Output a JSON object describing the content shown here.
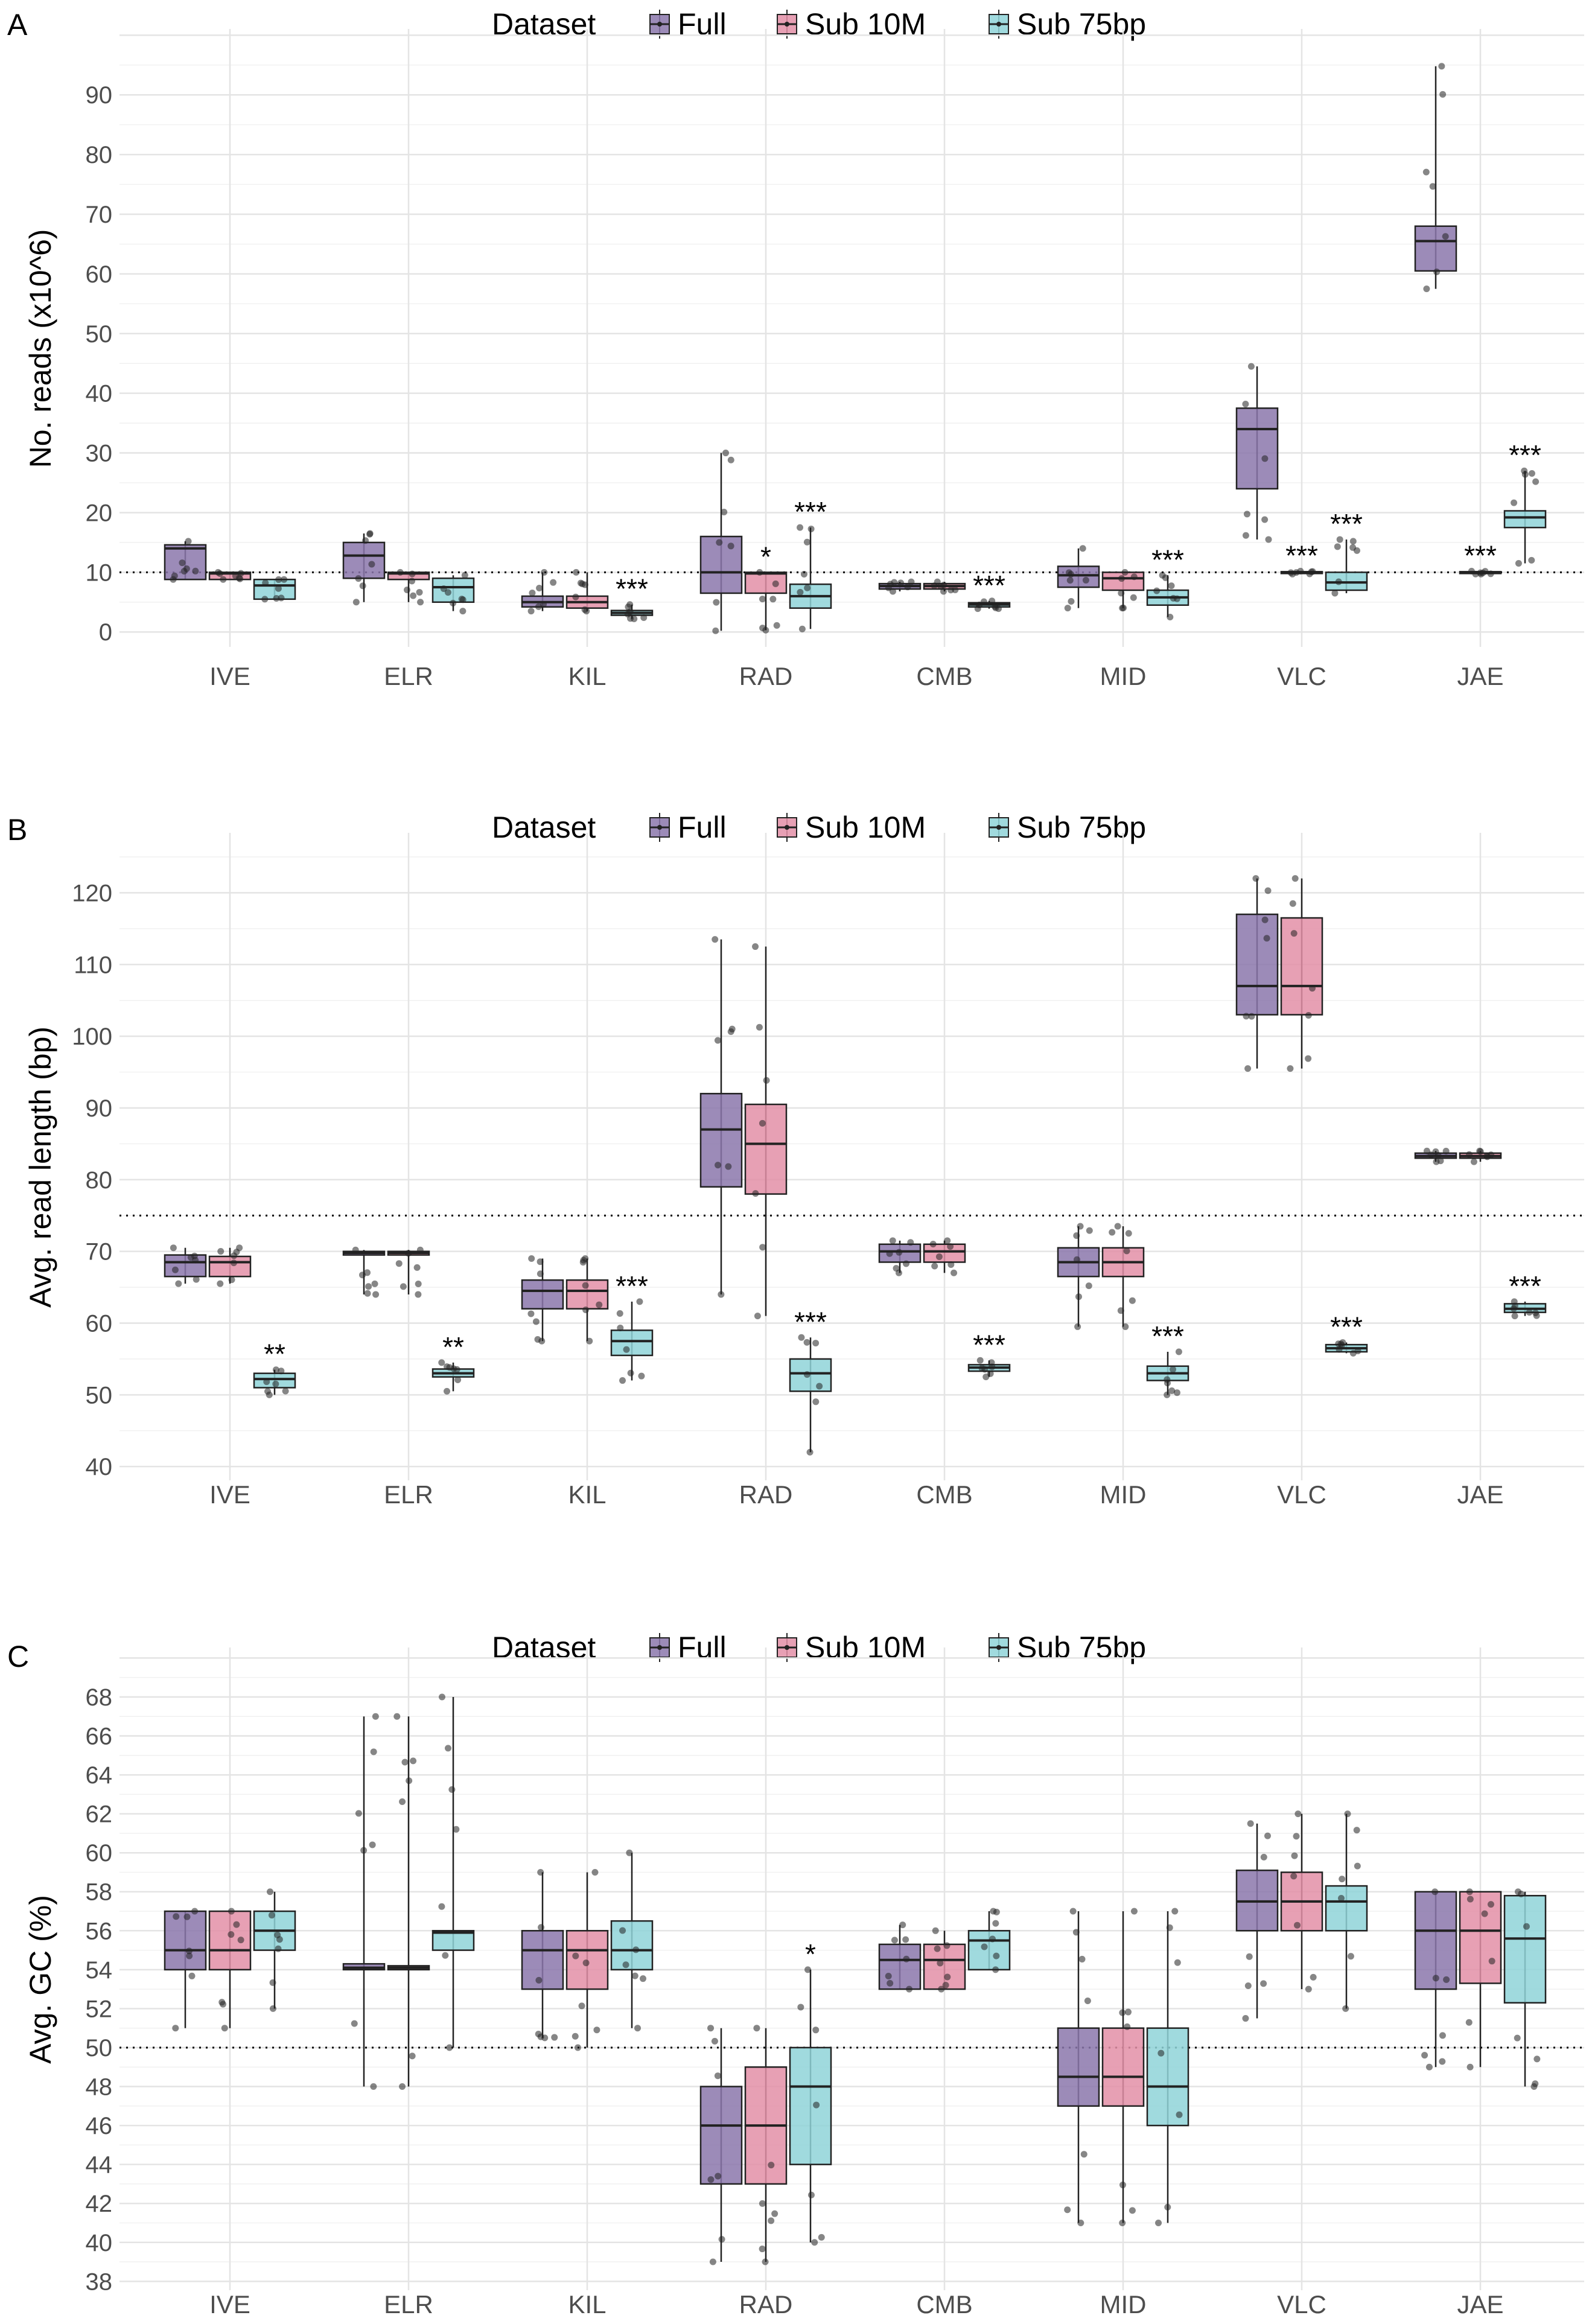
{
  "legend": {
    "title": "Dataset",
    "entries": [
      {
        "label": "Full",
        "color": "#8b77ac"
      },
      {
        "label": "Sub 10M",
        "color": "#e38fa7"
      },
      {
        "label": "Sub 75bp",
        "color": "#8fd3d8"
      }
    ]
  },
  "chart_data": [
    {
      "type": "box",
      "panel_label": "A",
      "ylabel": "No. reads (x10^6)",
      "ylim": [
        -2,
        97
      ],
      "yticks": [
        0,
        10,
        20,
        30,
        40,
        50,
        60,
        70,
        80,
        90
      ],
      "reference_line": 10,
      "grid": true,
      "legend_position": "top",
      "categories": [
        "IVE",
        "ELR",
        "KIL",
        "RAD",
        "CMB",
        "MID",
        "VLC",
        "JAE"
      ],
      "series": [
        {
          "name": "Full",
          "boxes": [
            {
              "q1": 8.8,
              "median": 14,
              "q3": 14.6,
              "low": 8.8,
              "high": 15.2
            },
            {
              "q1": 9,
              "median": 12.8,
              "q3": 15,
              "low": 5,
              "high": 16.5
            },
            {
              "q1": 4.2,
              "median": 5,
              "q3": 6,
              "low": 3.5,
              "high": 10
            },
            {
              "q1": 6.5,
              "median": 10,
              "q3": 16,
              "low": 0.2,
              "high": 30
            },
            {
              "q1": 7.2,
              "median": 7.7,
              "q3": 8.1,
              "low": 6.8,
              "high": 8.4
            },
            {
              "q1": 7.5,
              "median": 9.5,
              "q3": 11,
              "low": 4,
              "high": 14
            },
            {
              "q1": 24,
              "median": 34,
              "q3": 37.5,
              "low": 15.5,
              "high": 44.5
            },
            {
              "q1": 60.5,
              "median": 65.5,
              "q3": 68,
              "low": 57.5,
              "high": 94.8
            }
          ]
        },
        {
          "name": "Sub 10M",
          "boxes": [
            {
              "q1": 8.8,
              "median": 9.8,
              "q3": 10,
              "low": 8.8,
              "high": 10
            },
            {
              "q1": 8.8,
              "median": 9.8,
              "q3": 10,
              "low": 5,
              "high": 10
            },
            {
              "q1": 4,
              "median": 5,
              "q3": 6,
              "low": 3.5,
              "high": 10
            },
            {
              "q1": 6.5,
              "median": 9.8,
              "q3": 10,
              "low": 0.3,
              "high": 10
            },
            {
              "q1": 7.2,
              "median": 7.7,
              "q3": 8.1,
              "low": 6.8,
              "high": 8.4
            },
            {
              "q1": 7,
              "median": 9,
              "q3": 10,
              "low": 4,
              "high": 10
            },
            {
              "q1": 9.8,
              "median": 10,
              "q3": 10.1,
              "low": 9.7,
              "high": 10.2
            },
            {
              "q1": 9.8,
              "median": 10,
              "q3": 10.1,
              "low": 9.7,
              "high": 10.2
            }
          ]
        },
        {
          "name": "Sub 75bp",
          "boxes": [
            {
              "q1": 5.5,
              "median": 7.8,
              "q3": 8.8,
              "low": 5.5,
              "high": 8.8
            },
            {
              "q1": 5,
              "median": 7.5,
              "q3": 9,
              "low": 3.5,
              "high": 9.5
            },
            {
              "q1": 2.8,
              "median": 3.2,
              "q3": 3.6,
              "low": 2.2,
              "high": 4.6
            },
            {
              "q1": 4,
              "median": 6,
              "q3": 8,
              "low": 0.5,
              "high": 17.5
            },
            {
              "q1": 4.2,
              "median": 4.6,
              "q3": 4.9,
              "low": 3.9,
              "high": 5.2
            },
            {
              "q1": 4.5,
              "median": 5.8,
              "q3": 7,
              "low": 2.5,
              "high": 9.5
            },
            {
              "q1": 7,
              "median": 8.3,
              "q3": 10,
              "low": 6.5,
              "high": 15.5
            },
            {
              "q1": 17.5,
              "median": 19.2,
              "q3": 20.3,
              "low": 11.5,
              "high": 27
            }
          ]
        }
      ],
      "significance": [
        {
          "category": "KIL",
          "series": "Sub 75bp",
          "label": "***"
        },
        {
          "category": "RAD",
          "series": "Sub 10M",
          "label": "*"
        },
        {
          "category": "RAD",
          "series": "Sub 75bp",
          "label": "***"
        },
        {
          "category": "CMB",
          "series": "Sub 75bp",
          "label": "***"
        },
        {
          "category": "MID",
          "series": "Sub 75bp",
          "label": "***"
        },
        {
          "category": "VLC",
          "series": "Sub 10M",
          "label": "***"
        },
        {
          "category": "VLC",
          "series": "Sub 75bp",
          "label": "***"
        },
        {
          "category": "JAE",
          "series": "Sub 10M",
          "label": "***"
        },
        {
          "category": "JAE",
          "series": "Sub 75bp",
          "label": "***"
        }
      ]
    },
    {
      "type": "box",
      "panel_label": "B",
      "ylabel": "Avg. read length (bp)",
      "ylim": [
        38.5,
        125
      ],
      "yticks": [
        40,
        50,
        60,
        70,
        80,
        90,
        100,
        110,
        120
      ],
      "reference_line": 75,
      "grid": true,
      "legend_position": "top",
      "categories": [
        "IVE",
        "ELR",
        "KIL",
        "RAD",
        "CMB",
        "MID",
        "VLC",
        "JAE"
      ],
      "series": [
        {
          "name": "Full",
          "boxes": [
            {
              "q1": 66.5,
              "median": 68.5,
              "q3": 69.5,
              "low": 65.5,
              "high": 70.5
            },
            {
              "q1": 69.5,
              "median": 69.8,
              "q3": 70,
              "low": 64,
              "high": 70.2
            },
            {
              "q1": 62,
              "median": 64.5,
              "q3": 66,
              "low": 57.5,
              "high": 69
            },
            {
              "q1": 79,
              "median": 87,
              "q3": 92,
              "low": 64,
              "high": 113.5
            },
            {
              "q1": 68.5,
              "median": 70,
              "q3": 71,
              "low": 67,
              "high": 71.5
            },
            {
              "q1": 66.5,
              "median": 68.5,
              "q3": 70.5,
              "low": 59.5,
              "high": 73.5
            },
            {
              "q1": 103,
              "median": 107,
              "q3": 117,
              "low": 95.5,
              "high": 122
            },
            {
              "q1": 83,
              "median": 83.3,
              "q3": 83.7,
              "low": 82.5,
              "high": 84
            }
          ]
        },
        {
          "name": "Sub 10M",
          "boxes": [
            {
              "q1": 66.5,
              "median": 68.5,
              "q3": 69.3,
              "low": 65.5,
              "high": 70.5
            },
            {
              "q1": 69.5,
              "median": 69.8,
              "q3": 70,
              "low": 64,
              "high": 70.2
            },
            {
              "q1": 62,
              "median": 64.5,
              "q3": 66,
              "low": 57.5,
              "high": 69
            },
            {
              "q1": 78,
              "median": 85,
              "q3": 90.5,
              "low": 61,
              "high": 112.5
            },
            {
              "q1": 68.5,
              "median": 70,
              "q3": 71,
              "low": 67,
              "high": 71.5
            },
            {
              "q1": 66.5,
              "median": 68.5,
              "q3": 70.5,
              "low": 59.5,
              "high": 73.5
            },
            {
              "q1": 103,
              "median": 107,
              "q3": 116.5,
              "low": 95.5,
              "high": 122
            },
            {
              "q1": 83,
              "median": 83.3,
              "q3": 83.7,
              "low": 82.5,
              "high": 84
            }
          ]
        },
        {
          "name": "Sub 75bp",
          "boxes": [
            {
              "q1": 51,
              "median": 52.2,
              "q3": 53,
              "low": 50,
              "high": 53.5
            },
            {
              "q1": 52.5,
              "median": 53,
              "q3": 53.6,
              "low": 50.5,
              "high": 54.5
            },
            {
              "q1": 55.5,
              "median": 57.5,
              "q3": 59,
              "low": 52,
              "high": 63
            },
            {
              "q1": 50.5,
              "median": 53,
              "q3": 55,
              "low": 42,
              "high": 58
            },
            {
              "q1": 53.3,
              "median": 53.8,
              "q3": 54.2,
              "low": 52.5,
              "high": 54.8
            },
            {
              "q1": 52,
              "median": 53,
              "q3": 54,
              "low": 50,
              "high": 56
            },
            {
              "q1": 56,
              "median": 56.5,
              "q3": 57,
              "low": 55.8,
              "high": 57.3
            },
            {
              "q1": 61.5,
              "median": 62,
              "q3": 62.7,
              "low": 61,
              "high": 63
            }
          ]
        }
      ],
      "significance": [
        {
          "category": "IVE",
          "series": "Sub 75bp",
          "label": "**"
        },
        {
          "category": "ELR",
          "series": "Sub 75bp",
          "label": "**"
        },
        {
          "category": "KIL",
          "series": "Sub 75bp",
          "label": "***"
        },
        {
          "category": "RAD",
          "series": "Sub 75bp",
          "label": "***"
        },
        {
          "category": "CMB",
          "series": "Sub 75bp",
          "label": "***"
        },
        {
          "category": "MID",
          "series": "Sub 75bp",
          "label": "***"
        },
        {
          "category": "VLC",
          "series": "Sub 75bp",
          "label": "***"
        },
        {
          "category": "JAE",
          "series": "Sub 75bp",
          "label": "***"
        }
      ]
    },
    {
      "type": "box",
      "panel_label": "C",
      "ylabel": "Avg. GC (%)",
      "ylim": [
        37.7,
        69.3
      ],
      "yticks": [
        38,
        40,
        42,
        44,
        46,
        48,
        50,
        52,
        54,
        56,
        58,
        60,
        62,
        64,
        66,
        68
      ],
      "reference_line": 50,
      "grid": true,
      "legend_position": "top",
      "categories": [
        "IVE",
        "ELR",
        "KIL",
        "RAD",
        "CMB",
        "MID",
        "VLC",
        "JAE"
      ],
      "series": [
        {
          "name": "Full",
          "boxes": [
            {
              "q1": 54,
              "median": 55,
              "q3": 57,
              "low": 51,
              "high": 57
            },
            {
              "q1": 54,
              "median": 54.1,
              "q3": 54.3,
              "low": 48,
              "high": 67
            },
            {
              "q1": 53,
              "median": 55,
              "q3": 56,
              "low": 50.5,
              "high": 59
            },
            {
              "q1": 43,
              "median": 46,
              "q3": 48,
              "low": 39,
              "high": 51
            },
            {
              "q1": 53,
              "median": 54.5,
              "q3": 55.3,
              "low": 53,
              "high": 56.3
            },
            {
              "q1": 47,
              "median": 48.5,
              "q3": 51,
              "low": 41,
              "high": 57
            },
            {
              "q1": 56,
              "median": 57.5,
              "q3": 59.1,
              "low": 51.5,
              "high": 61.5
            },
            {
              "q1": 53,
              "median": 56,
              "q3": 58,
              "low": 49,
              "high": 58
            }
          ]
        },
        {
          "name": "Sub 10M",
          "boxes": [
            {
              "q1": 54,
              "median": 55,
              "q3": 57,
              "low": 51,
              "high": 57
            },
            {
              "q1": 54,
              "median": 54.1,
              "q3": 54.2,
              "low": 48,
              "high": 67
            },
            {
              "q1": 53,
              "median": 55,
              "q3": 56,
              "low": 50,
              "high": 59
            },
            {
              "q1": 43,
              "median": 46,
              "q3": 49,
              "low": 39,
              "high": 51
            },
            {
              "q1": 53,
              "median": 54.5,
              "q3": 55.3,
              "low": 53,
              "high": 56
            },
            {
              "q1": 47,
              "median": 48.5,
              "q3": 51,
              "low": 41,
              "high": 57
            },
            {
              "q1": 56,
              "median": 57.5,
              "q3": 59,
              "low": 53,
              "high": 62
            },
            {
              "q1": 53.3,
              "median": 56,
              "q3": 58,
              "low": 49,
              "high": 58
            }
          ]
        },
        {
          "name": "Sub 75bp",
          "boxes": [
            {
              "q1": 55,
              "median": 56,
              "q3": 57,
              "low": 52,
              "high": 58
            },
            {
              "q1": 55,
              "median": 55.9,
              "q3": 56,
              "low": 50,
              "high": 68
            },
            {
              "q1": 54,
              "median": 55,
              "q3": 56.5,
              "low": 51,
              "high": 60
            },
            {
              "q1": 44,
              "median": 48,
              "q3": 50,
              "low": 40,
              "high": 54
            },
            {
              "q1": 54,
              "median": 55.5,
              "q3": 56,
              "low": 54,
              "high": 57
            },
            {
              "q1": 46,
              "median": 48,
              "q3": 51,
              "low": 41,
              "high": 57
            },
            {
              "q1": 56,
              "median": 57.5,
              "q3": 58.3,
              "low": 52,
              "high": 62
            },
            {
              "q1": 52.3,
              "median": 55.6,
              "q3": 57.8,
              "low": 48,
              "high": 58
            }
          ]
        }
      ],
      "significance": [
        {
          "category": "RAD",
          "series": "Sub 75bp",
          "label": "*"
        }
      ]
    }
  ]
}
